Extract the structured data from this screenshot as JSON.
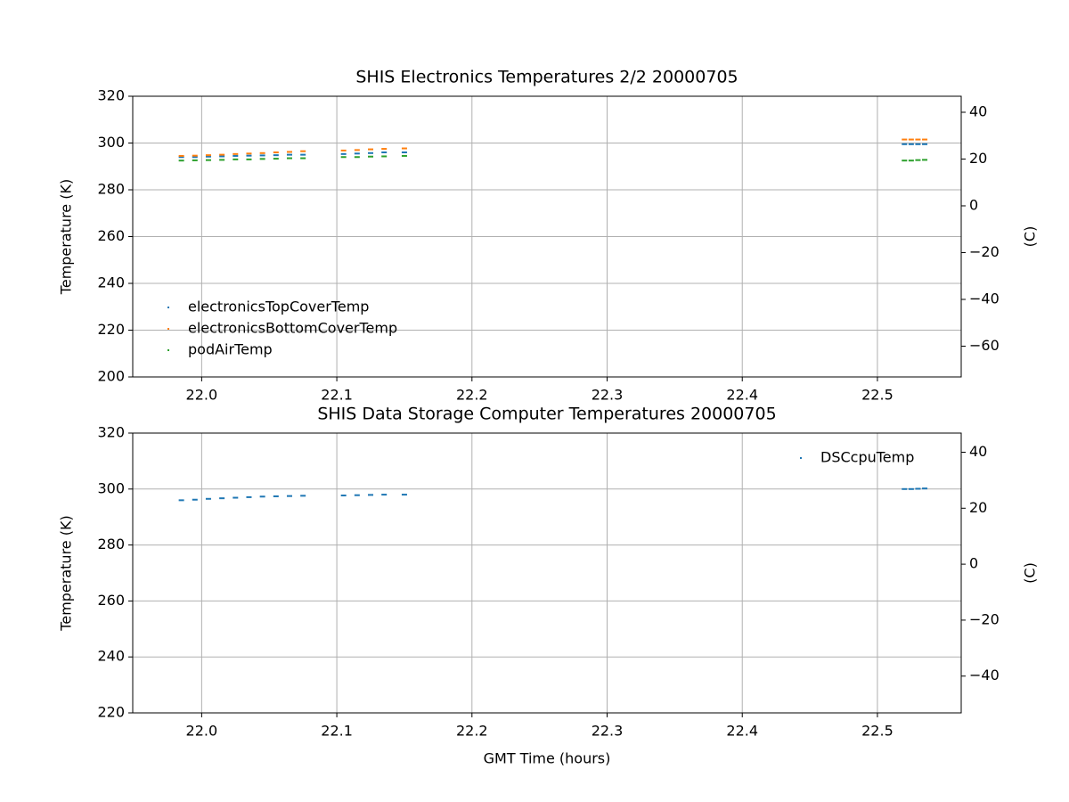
{
  "chart_data": [
    {
      "type": "scatter",
      "title": "SHIS Electronics Temperatures 2/2 20000705",
      "ylabel": "Temperature (K)",
      "y2label": "(C)",
      "x": [
        21.985,
        21.995,
        22.005,
        22.015,
        22.025,
        22.035,
        22.045,
        22.055,
        22.065,
        22.075,
        22.105,
        22.115,
        22.125,
        22.135,
        22.15,
        22.52,
        22.525,
        22.53,
        22.535
      ],
      "series": [
        {
          "name": "electronicsTopCoverTemp",
          "color": "#1f77b4",
          "values": [
            294,
            294,
            294.2,
            294.3,
            294.5,
            294.6,
            294.7,
            294.8,
            295,
            295,
            295.3,
            295.5,
            295.7,
            296,
            296,
            299.5,
            299.5,
            299.5,
            299.5
          ]
        },
        {
          "name": "electronicsBottomCoverTemp",
          "color": "#ff7f0e",
          "values": [
            294.5,
            294.6,
            294.8,
            295,
            295.3,
            295.5,
            295.7,
            296,
            296.2,
            296.5,
            296.8,
            297,
            297.3,
            297.5,
            297.7,
            301.5,
            301.5,
            301.5,
            301.5
          ]
        },
        {
          "name": "podAirTemp",
          "color": "#2ca02c",
          "values": [
            292.5,
            292.6,
            292.7,
            292.8,
            293,
            293,
            293.2,
            293.3,
            293.5,
            293.5,
            294,
            294,
            294.2,
            294.3,
            294.5,
            292.5,
            292.5,
            292.7,
            292.8
          ]
        }
      ],
      "xlim": [
        21.949,
        22.562
      ],
      "xticks": [
        {
          "value": 22,
          "label": "22.0"
        },
        22.1,
        22.2,
        22.3,
        22.4,
        22.5
      ],
      "ylim": [
        200,
        320
      ],
      "yticks": [
        200,
        220,
        240,
        260,
        280,
        300,
        320
      ],
      "y2lim": [
        -73.15,
        46.85
      ],
      "y2ticks": [
        {
          "value": -60,
          "label": "−60"
        },
        {
          "value": -40,
          "label": "−40"
        },
        {
          "value": -20,
          "label": "−20"
        },
        0,
        20,
        40
      ],
      "grid": true,
      "legend": "lower left"
    },
    {
      "type": "scatter",
      "title": "SHIS Data Storage Computer Temperatures 20000705",
      "xlabel": "GMT Time (hours)",
      "ylabel": "Temperature (K)",
      "y2label": "(C)",
      "x": [
        21.985,
        21.995,
        22.005,
        22.015,
        22.025,
        22.035,
        22.045,
        22.055,
        22.065,
        22.075,
        22.105,
        22.115,
        22.125,
        22.135,
        22.15,
        22.52,
        22.525,
        22.53,
        22.535
      ],
      "series": [
        {
          "name": "DSCcpuTemp",
          "color": "#1f77b4",
          "values": [
            296,
            296.2,
            296.5,
            296.7,
            296.9,
            297.1,
            297.3,
            297.4,
            297.5,
            297.6,
            297.7,
            297.8,
            297.9,
            298,
            298,
            300,
            300,
            300.1,
            300.2
          ]
        }
      ],
      "xlim": [
        21.949,
        22.562
      ],
      "xticks": [
        {
          "value": 22,
          "label": "22.0"
        },
        22.1,
        22.2,
        22.3,
        22.4,
        22.5
      ],
      "ylim": [
        220,
        320
      ],
      "yticks": [
        220,
        240,
        260,
        280,
        300,
        320
      ],
      "y2lim": [
        -53.15,
        46.85
      ],
      "y2ticks": [
        {
          "value": -40,
          "label": "−40"
        },
        {
          "value": -20,
          "label": "−20"
        },
        0,
        20,
        40
      ],
      "grid": true,
      "legend": "upper right"
    }
  ]
}
